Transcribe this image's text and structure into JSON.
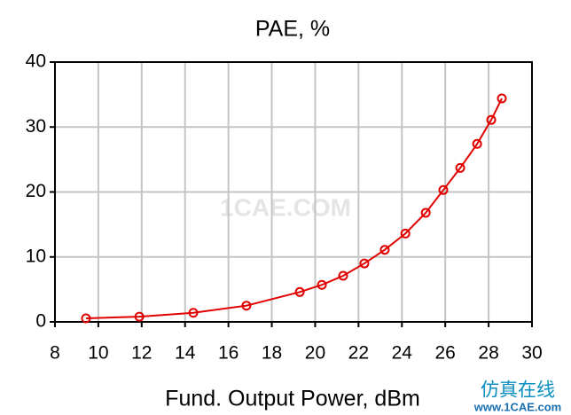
{
  "chart_data": {
    "type": "line",
    "title": "PAE, %",
    "x_label": "Fund. Output Power, dBm",
    "x": [
      9.43,
      11.89,
      14.38,
      16.83,
      19.29,
      20.31,
      21.29,
      22.27,
      23.21,
      24.16,
      25.1,
      25.91,
      26.69,
      27.47,
      28.12,
      28.61
    ],
    "series": [
      {
        "name": "PAE",
        "color": "#e00000",
        "values": [
          0.55,
          0.8,
          1.4,
          2.5,
          4.6,
          5.7,
          7.1,
          9.0,
          11.1,
          13.6,
          16.8,
          20.3,
          23.7,
          27.4,
          31.1,
          34.4
        ]
      }
    ],
    "xlim": [
      8,
      30
    ],
    "xticks": [
      8,
      10,
      12,
      14,
      16,
      18,
      20,
      22,
      24,
      26,
      28,
      30
    ],
    "ylim": [
      0,
      40
    ],
    "yticks": [
      0,
      10,
      20,
      30,
      40
    ],
    "grid": true,
    "annotations": [
      "1CAE.COM",
      "仿真在线",
      "www.1CAE.com"
    ]
  }
}
